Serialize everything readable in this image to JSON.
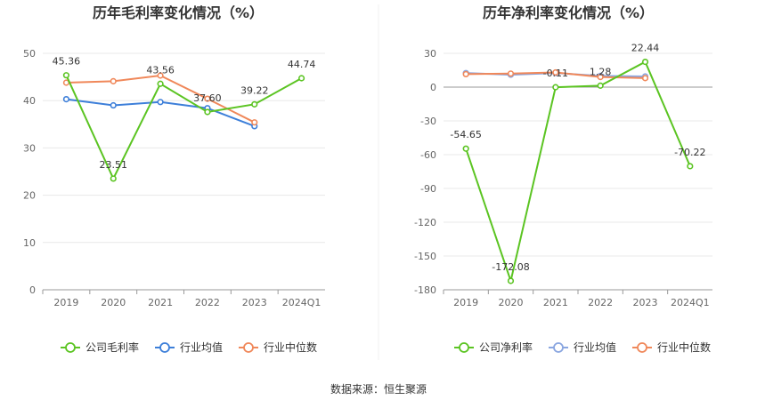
{
  "chart_data": [
    {
      "type": "line",
      "title": "历年毛利率变化情况（%）",
      "categories": [
        "2019",
        "2020",
        "2021",
        "2022",
        "2023",
        "2024Q1"
      ],
      "y_ticks": [
        "0",
        "10",
        "20",
        "30",
        "40",
        "50"
      ],
      "ylim": [
        0,
        50
      ],
      "grid": true,
      "legend_position": "bottom",
      "series": [
        {
          "name": "公司毛利率",
          "color": "#5bc422",
          "values": [
            45.36,
            23.51,
            43.56,
            37.6,
            39.22,
            44.74
          ],
          "labels": [
            "45.36",
            "23.51",
            "43.56",
            "37.60",
            "39.22",
            "44.74"
          ]
        },
        {
          "name": "行业均值",
          "color": "#3d7fd9",
          "values": [
            40.3,
            39.0,
            39.7,
            38.4,
            34.6,
            null
          ]
        },
        {
          "name": "行业中位数",
          "color": "#f0885a",
          "values": [
            43.8,
            44.1,
            45.3,
            40.4,
            35.4,
            null
          ]
        }
      ]
    },
    {
      "type": "line",
      "title": "历年净利率变化情况（%）",
      "categories": [
        "2019",
        "2020",
        "2021",
        "2022",
        "2023",
        "2024Q1"
      ],
      "y_ticks": [
        "30",
        "0",
        "-30",
        "-60",
        "-90",
        "-120",
        "-150",
        "-180"
      ],
      "ylim": [
        -180,
        30
      ],
      "grid": true,
      "legend_position": "bottom",
      "series": [
        {
          "name": "公司净利率",
          "color": "#5bc422",
          "values": [
            -54.65,
            -172.08,
            -0.11,
            1.28,
            22.44,
            -70.22
          ],
          "labels": [
            "-54.65",
            "-172.08",
            "-0.11",
            "1.28",
            "22.44",
            "-70.22"
          ]
        },
        {
          "name": "行业均值",
          "color": "#8aa6e0",
          "values": [
            12.5,
            11.0,
            12.5,
            10.0,
            9.5,
            null
          ]
        },
        {
          "name": "行业中位数",
          "color": "#f0885a",
          "values": [
            11.5,
            12.0,
            13.0,
            9.0,
            8.0,
            null
          ]
        }
      ]
    }
  ],
  "footer": {
    "source": "数据来源：恒生聚源"
  }
}
